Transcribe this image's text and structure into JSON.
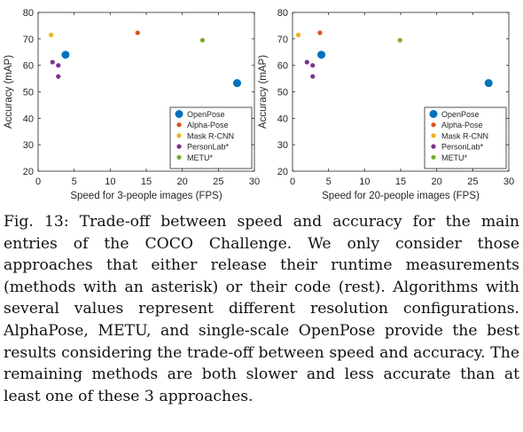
{
  "figure": {
    "caption": "Fig. 13: Trade-off between speed and accuracy for the main entries of the COCO Challenge. We only consider those approaches that either release their runtime measurements (methods with an asterisk) or their code (rest). Algorithms with several values represent different resolution configurations. AlphaPose, METU, and single-scale OpenPose provide the best results considering the trade-off between speed and accuracy. The remaining methods are both slower and less accurate than at least one of these 3 approaches."
  },
  "chart_data": [
    {
      "type": "scatter",
      "xlabel": "Speed for 3-people images (FPS)",
      "ylabel": "Accuracy (mAP)",
      "xlim": [
        0,
        30
      ],
      "ylim": [
        20,
        80
      ],
      "xticks": [
        0,
        5,
        10,
        15,
        20,
        25,
        30
      ],
      "yticks": [
        20,
        30,
        40,
        50,
        60,
        70,
        80
      ],
      "grid": false,
      "legend_position": "bottom-right",
      "series": [
        {
          "name": "OpenPose",
          "color": "#0072bd",
          "points": [
            [
              3.8,
              64
            ],
            [
              27.6,
              53.3
            ]
          ]
        },
        {
          "name": "Alpha-Pose",
          "color": "#d95319",
          "points": [
            [
              13.8,
              72.3
            ]
          ]
        },
        {
          "name": "Mask R-CNN",
          "color": "#edb120",
          "points": [
            [
              1.8,
              71.5
            ]
          ]
        },
        {
          "name": "PersonLab*",
          "color": "#7e2f8e",
          "points": [
            [
              2.0,
              61.2
            ],
            [
              2.8,
              60.0
            ],
            [
              2.8,
              55.8
            ]
          ]
        },
        {
          "name": "METU*",
          "color": "#77ac30",
          "points": [
            [
              22.8,
              69.5
            ]
          ]
        }
      ]
    },
    {
      "type": "scatter",
      "xlabel": "Speed for 20-people images (FPS)",
      "ylabel": "Accuracy (mAP)",
      "xlim": [
        0,
        30
      ],
      "ylim": [
        20,
        80
      ],
      "xticks": [
        0,
        5,
        10,
        15,
        20,
        25,
        30
      ],
      "yticks": [
        20,
        30,
        40,
        50,
        60,
        70,
        80
      ],
      "grid": false,
      "legend_position": "bottom-right",
      "series": [
        {
          "name": "OpenPose",
          "color": "#0072bd",
          "points": [
            [
              4.0,
              64
            ],
            [
              27.2,
              53.3
            ]
          ]
        },
        {
          "name": "Alpha-Pose",
          "color": "#d95319",
          "points": [
            [
              3.8,
              72.3
            ]
          ]
        },
        {
          "name": "Mask R-CNN",
          "color": "#edb120",
          "points": [
            [
              0.8,
              71.5
            ]
          ]
        },
        {
          "name": "PersonLab*",
          "color": "#7e2f8e",
          "points": [
            [
              2.0,
              61.2
            ],
            [
              2.8,
              60.0
            ],
            [
              2.8,
              55.8
            ]
          ]
        },
        {
          "name": "METU*",
          "color": "#77ac30",
          "points": [
            [
              14.9,
              69.5
            ]
          ]
        }
      ]
    }
  ]
}
